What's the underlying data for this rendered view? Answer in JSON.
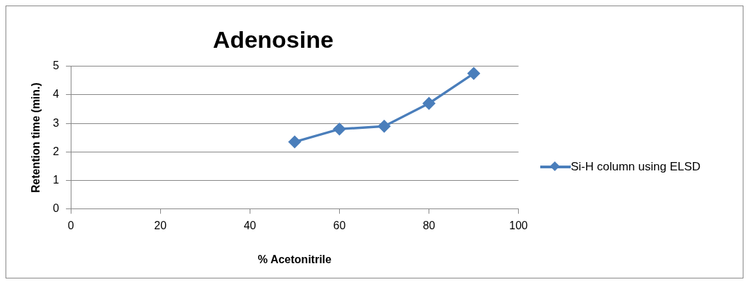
{
  "chart_data": {
    "type": "line",
    "title": "Adenosine",
    "xlabel": "% Acetonitrile",
    "ylabel": "Retention time (min.)",
    "x": [
      50,
      60,
      70,
      80,
      90
    ],
    "series": [
      {
        "name": "Si-H column using ELSD",
        "color": "#4a7ebb",
        "values": [
          2.35,
          2.8,
          2.9,
          3.7,
          4.75
        ]
      }
    ],
    "xlim": [
      0,
      100
    ],
    "xticks": [
      0,
      20,
      40,
      60,
      80,
      100
    ],
    "ylim": [
      0,
      5
    ],
    "yticks": [
      0,
      1,
      2,
      3,
      4,
      5
    ],
    "grid": "y",
    "legend": "right",
    "marker": "diamond",
    "line_style": "solid"
  }
}
